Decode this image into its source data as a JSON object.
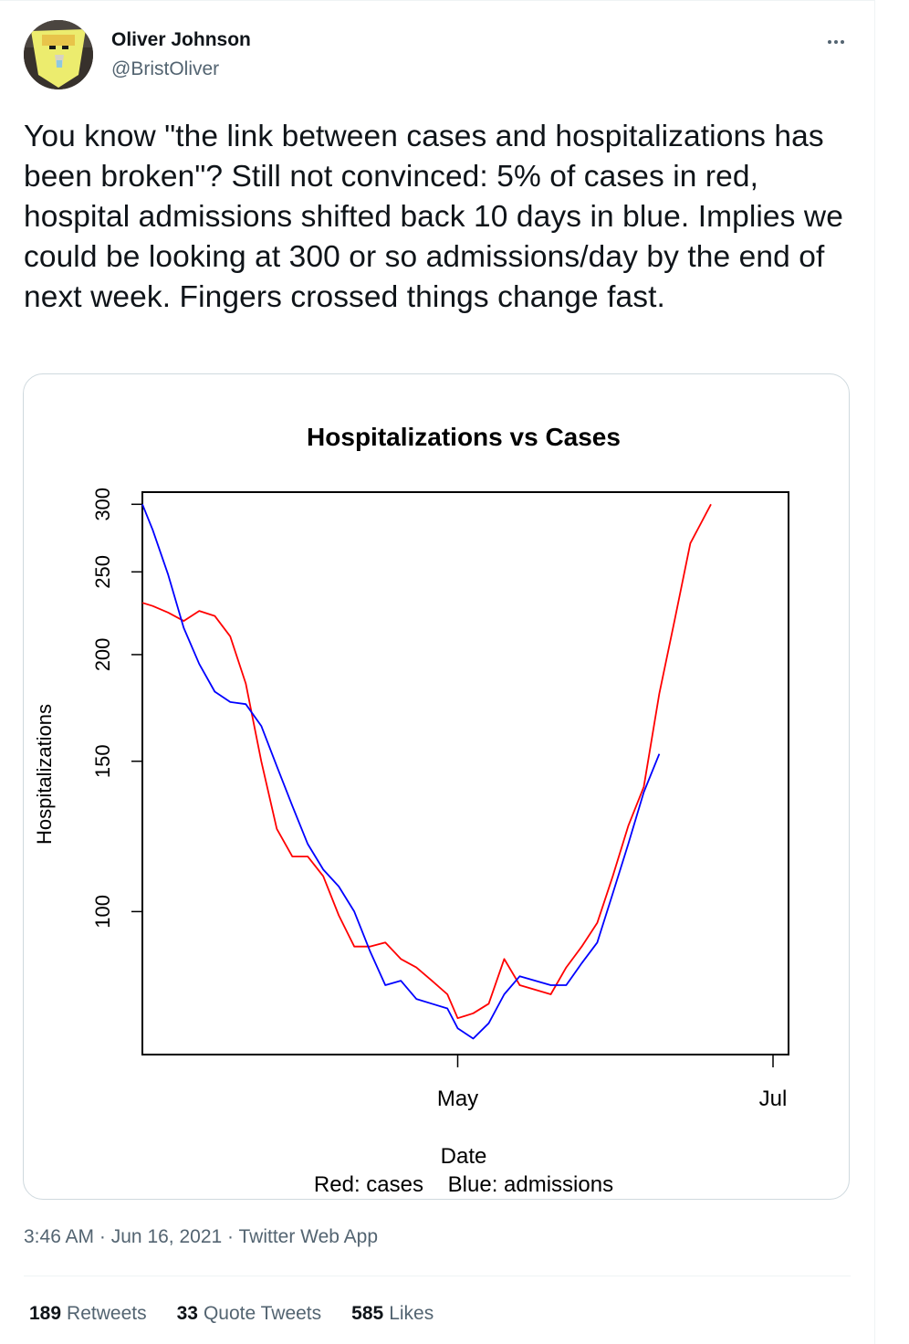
{
  "author": {
    "name": "Oliver Johnson",
    "handle": "@BristOliver"
  },
  "tweet": {
    "text": "You know \"the link between cases and hospitalizations has been broken\"? Still not convinced: 5% of cases in red, hospital admissions shifted back 10 days in blue. Implies we could be looking at 300 or so admissions/day by the end of next week. Fingers crossed things change fast.",
    "time": "3:46 AM",
    "separator": "·",
    "date": "Jun 16, 2021",
    "source": "Twitter Web App"
  },
  "stats": {
    "retweets_count": "189",
    "retweets_label": "Retweets",
    "quotes_count": "33",
    "quotes_label": "Quote Tweets",
    "likes_count": "585",
    "likes_label": "Likes"
  },
  "icons": {
    "more": "more-dots-icon",
    "avatar": "avatar-image"
  },
  "colors": {
    "text_primary": "#0f1419",
    "text_secondary": "#536471",
    "border": "#cfd9de",
    "cases_series": "#ff0000",
    "admissions_series": "#0000ff"
  },
  "chart_data": {
    "type": "line",
    "title": "Hospitalizations vs Cases",
    "xlabel": "Date",
    "ylabel": "Hospitalizations",
    "caption": "Red: cases    Blue: admissions",
    "x_ticks": [
      "May",
      "Jul"
    ],
    "y_ticks": [
      "100",
      "150",
      "200",
      "250",
      "300"
    ],
    "y_scale": "log",
    "ylim": [
      68,
      310
    ],
    "xlim": [
      "2021-03-01",
      "2021-07-04"
    ],
    "grid": false,
    "legend": "none",
    "series": [
      {
        "color": "red",
        "x": [
          "2021-03-01",
          "2021-03-03",
          "2021-03-06",
          "2021-03-09",
          "2021-03-12",
          "2021-03-15",
          "2021-03-18",
          "2021-03-21",
          "2021-03-24",
          "2021-03-27",
          "2021-03-30",
          "2021-04-02",
          "2021-04-05",
          "2021-04-08",
          "2021-04-11",
          "2021-04-14",
          "2021-04-17",
          "2021-04-20",
          "2021-04-23",
          "2021-04-26",
          "2021-04-29",
          "2021-05-01",
          "2021-05-04",
          "2021-05-07",
          "2021-05-10",
          "2021-05-13",
          "2021-05-16",
          "2021-05-19",
          "2021-05-22",
          "2021-05-25",
          "2021-05-28",
          "2021-05-31",
          "2021-06-03",
          "2021-06-06",
          "2021-06-09",
          "2021-06-12",
          "2021-06-15",
          "2021-06-19"
        ],
        "y": [
          230,
          228,
          224,
          219,
          225,
          222,
          210,
          185,
          150,
          125,
          116,
          116,
          110,
          99,
          91,
          91,
          92,
          88,
          86,
          83,
          80,
          75,
          76,
          78,
          88,
          82,
          81,
          80,
          86,
          91,
          97,
          110,
          126,
          140,
          180,
          220,
          270,
          300
        ]
      },
      {
        "color": "blue",
        "x": [
          "2021-03-01",
          "2021-03-03",
          "2021-03-06",
          "2021-03-09",
          "2021-03-12",
          "2021-03-15",
          "2021-03-18",
          "2021-03-21",
          "2021-03-24",
          "2021-03-27",
          "2021-03-30",
          "2021-04-02",
          "2021-04-05",
          "2021-04-08",
          "2021-04-11",
          "2021-04-14",
          "2021-04-17",
          "2021-04-20",
          "2021-04-23",
          "2021-04-26",
          "2021-04-29",
          "2021-05-01",
          "2021-05-04",
          "2021-05-07",
          "2021-05-10",
          "2021-05-13",
          "2021-05-16",
          "2021-05-19",
          "2021-05-22",
          "2021-05-25",
          "2021-05-28",
          "2021-05-31",
          "2021-06-03",
          "2021-06-06",
          "2021-06-09"
        ],
        "y": [
          300,
          280,
          248,
          215,
          195,
          181,
          176,
          175,
          165,
          148,
          133,
          120,
          112,
          107,
          100,
          90,
          82,
          83,
          79,
          78,
          77,
          73,
          71,
          74,
          80,
          84,
          83,
          82,
          82,
          87,
          92,
          105,
          120,
          138,
          153
        ]
      }
    ]
  }
}
